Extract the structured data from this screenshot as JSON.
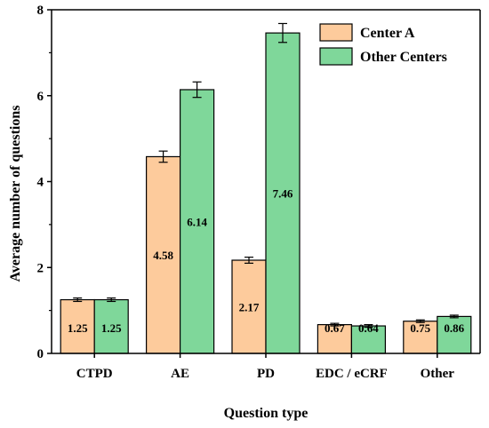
{
  "chart_data": {
    "type": "bar",
    "xlabel": "Question type",
    "ylabel": "Average number of questions",
    "ylim": [
      0,
      8
    ],
    "yticks": [
      0,
      2,
      4,
      6,
      8
    ],
    "categories": [
      "CTPD",
      "AE",
      "PD",
      "EDC / eCRF",
      "Other"
    ],
    "series": [
      {
        "name": "Center A",
        "color": "#FDCB9C",
        "values": [
          1.25,
          4.58,
          2.17,
          0.67,
          0.75
        ],
        "labels": [
          "1.25",
          "4.58",
          "2.17",
          "0.67",
          "0.75"
        ],
        "errors": [
          0.04,
          0.13,
          0.07,
          0.03,
          0.03
        ]
      },
      {
        "name": "Other Centers",
        "color": "#7FD79A",
        "values": [
          1.25,
          6.14,
          7.46,
          0.64,
          0.86
        ],
        "labels": [
          "1.25",
          "6.14",
          "7.46",
          "0.64",
          "0.86"
        ],
        "errors": [
          0.04,
          0.18,
          0.22,
          0.03,
          0.03
        ]
      }
    ],
    "legend_position": "top-right",
    "grid": false
  }
}
